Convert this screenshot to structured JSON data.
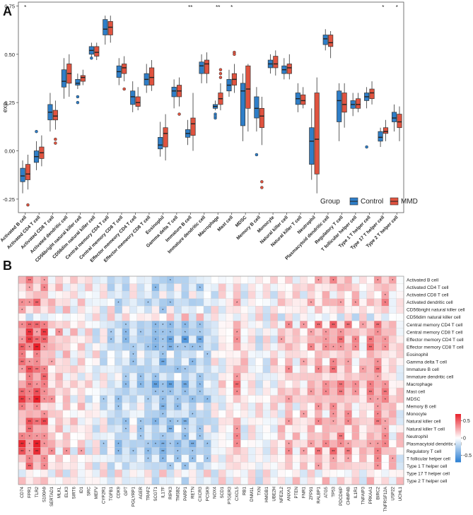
{
  "chart_data": [
    {
      "panel": "A",
      "type": "box",
      "ylabel": "exp",
      "xlabel": "",
      "ylim": [
        -0.32,
        0.77
      ],
      "yticks": [
        "-0.25",
        "0.00",
        "0.25",
        "0.50",
        "0.75"
      ],
      "ytick_values": [
        -0.25,
        0.0,
        0.25,
        0.5,
        0.75
      ],
      "legend": {
        "title": "Group",
        "position": "bottom-right",
        "entries": [
          "Control",
          "MMD"
        ]
      },
      "colors": {
        "Control": "#2e7ec8",
        "MMD": "#e0533f"
      },
      "categories": [
        "Activated B cell",
        "Activated CD4 T cell",
        "Activated CD8 T cell",
        "Activated dendritic cell",
        "CD56bright natural killer cell",
        "CD56dim natural killer cell",
        "Central memory CD4 T cell",
        "Central memory CD8 T cell",
        "Effector memeory CD4 T cell",
        "Effector memeory CD8 T cell",
        "Eosinophil",
        "Gamma delta T cell",
        "Immature  B cell",
        "Immature dendritic cell",
        "Macrophage",
        "Mast cell",
        "MDSC",
        "Memory B cell",
        "Monocyte",
        "Natural killer cell",
        "Natural killer T cell",
        "Neutrophil",
        "Plasmacytoid dendritic cell",
        "Regulatory T cell",
        "T follicular helper cell",
        "Type 1 T helper cell",
        "Type 17 T helper cell",
        "Type 2 T helper cell"
      ],
      "significance": [
        "*",
        "",
        "",
        "",
        "",
        "",
        "",
        "",
        "",
        "",
        "",
        "",
        "**",
        "",
        "**",
        "*",
        "",
        "",
        "",
        "",
        "",
        "",
        "",
        "",
        "",
        "",
        "*",
        "*"
      ],
      "series": [
        {
          "name": "Control",
          "boxes": [
            [
              -0.22,
              -0.16,
              -0.13,
              -0.09,
              -0.05
            ],
            [
              -0.1,
              -0.06,
              -0.03,
              0.0,
              0.05
            ],
            [
              0.1,
              0.16,
              0.2,
              0.24,
              0.3
            ],
            [
              0.27,
              0.33,
              0.36,
              0.42,
              0.48
            ],
            [
              0.32,
              0.34,
              0.35,
              0.37,
              0.4
            ],
            [
              0.48,
              0.5,
              0.52,
              0.54,
              0.56
            ],
            [
              0.55,
              0.6,
              0.63,
              0.68,
              0.7
            ],
            [
              0.34,
              0.38,
              0.41,
              0.44,
              0.48
            ],
            [
              0.2,
              0.24,
              0.28,
              0.31,
              0.36
            ],
            [
              0.3,
              0.34,
              0.37,
              0.4,
              0.45
            ],
            [
              -0.03,
              0.01,
              0.03,
              0.07,
              0.15
            ],
            [
              0.22,
              0.28,
              0.31,
              0.33,
              0.37
            ],
            [
              0.03,
              0.07,
              0.09,
              0.11,
              0.16
            ],
            [
              0.35,
              0.4,
              0.44,
              0.46,
              0.5
            ],
            [
              0.21,
              0.22,
              0.23,
              0.24,
              0.26
            ],
            [
              0.28,
              0.31,
              0.34,
              0.37,
              0.42
            ],
            [
              0.05,
              0.13,
              0.31,
              0.35,
              0.4
            ],
            [
              0.1,
              0.17,
              0.22,
              0.28,
              0.33
            ],
            [
              0.4,
              0.43,
              0.45,
              0.47,
              0.5
            ],
            [
              0.37,
              0.4,
              0.42,
              0.44,
              0.48
            ],
            [
              0.2,
              0.24,
              0.27,
              0.3,
              0.35
            ],
            [
              -0.15,
              -0.07,
              0.05,
              0.12,
              0.22
            ],
            [
              0.52,
              0.55,
              0.58,
              0.6,
              0.63
            ],
            [
              0.05,
              0.15,
              0.26,
              0.31,
              0.35
            ],
            [
              0.18,
              0.22,
              0.24,
              0.26,
              0.3
            ],
            [
              0.22,
              0.26,
              0.28,
              0.3,
              0.33
            ],
            [
              0.02,
              0.05,
              0.07,
              0.1,
              0.12
            ],
            [
              0.1,
              0.15,
              0.17,
              0.2,
              0.24
            ]
          ]
        },
        {
          "name": "MMD",
          "boxes": [
            [
              -0.2,
              -0.15,
              -0.12,
              -0.07,
              -0.02
            ],
            [
              -0.08,
              -0.04,
              -0.01,
              0.02,
              0.08
            ],
            [
              0.11,
              0.16,
              0.18,
              0.21,
              0.26
            ],
            [
              0.28,
              0.35,
              0.4,
              0.45,
              0.5
            ],
            [
              0.34,
              0.36,
              0.38,
              0.39,
              0.42
            ],
            [
              0.47,
              0.49,
              0.51,
              0.54,
              0.56
            ],
            [
              0.56,
              0.6,
              0.64,
              0.67,
              0.7
            ],
            [
              0.36,
              0.4,
              0.43,
              0.45,
              0.49
            ],
            [
              0.21,
              0.23,
              0.25,
              0.28,
              0.33
            ],
            [
              0.31,
              0.34,
              0.38,
              0.43,
              0.47
            ],
            [
              -0.05,
              0.02,
              0.09,
              0.12,
              0.19
            ],
            [
              0.23,
              0.28,
              0.31,
              0.34,
              0.38
            ],
            [
              0.0,
              0.08,
              0.14,
              0.17,
              0.3
            ],
            [
              0.35,
              0.4,
              0.45,
              0.47,
              0.51
            ],
            [
              0.21,
              0.24,
              0.27,
              0.3,
              0.35
            ],
            [
              0.3,
              0.34,
              0.37,
              0.4,
              0.45
            ],
            [
              0.1,
              0.22,
              0.32,
              0.44,
              0.45
            ],
            [
              0.03,
              0.12,
              0.18,
              0.22,
              0.28
            ],
            [
              0.39,
              0.43,
              0.45,
              0.49,
              0.52
            ],
            [
              0.37,
              0.4,
              0.43,
              0.45,
              0.5
            ],
            [
              0.22,
              0.24,
              0.26,
              0.29,
              0.33
            ],
            [
              -0.22,
              -0.12,
              0.06,
              0.3,
              0.38
            ],
            [
              0.48,
              0.54,
              0.56,
              0.6,
              0.62
            ],
            [
              0.12,
              0.2,
              0.24,
              0.3,
              0.35
            ],
            [
              0.2,
              0.22,
              0.24,
              0.27,
              0.3
            ],
            [
              0.24,
              0.27,
              0.3,
              0.32,
              0.36
            ],
            [
              0.05,
              0.09,
              0.1,
              0.12,
              0.16
            ],
            [
              0.05,
              0.12,
              0.15,
              0.19,
              0.23
            ]
          ]
        }
      ],
      "outliers": {
        "Control": [
          [
            1,
            0.1
          ],
          [
            4,
            0.25
          ],
          [
            4,
            0.28
          ],
          [
            5,
            0.48
          ],
          [
            14,
            0.17
          ],
          [
            14,
            0.19
          ],
          [
            14,
            0.18
          ],
          [
            17,
            -0.02
          ],
          [
            25,
            0.02
          ]
        ],
        "MMD": [
          [
            0,
            -0.28
          ],
          [
            2,
            0.04
          ],
          [
            2,
            0.06
          ],
          [
            7,
            0.32
          ],
          [
            11,
            0.19
          ],
          [
            14,
            0.38
          ],
          [
            14,
            0.4
          ],
          [
            14,
            0.42
          ],
          [
            15,
            0.51
          ],
          [
            15,
            0.5
          ],
          [
            17,
            -0.16
          ],
          [
            17,
            -0.19
          ]
        ]
      }
    },
    {
      "panel": "B",
      "type": "heatmap",
      "title": "",
      "colorbar": {
        "min": -0.7,
        "max": 0.7,
        "ticks": [
          "0.5",
          "0",
          "-0.5"
        ],
        "tick_values": [
          0.5,
          0,
          -0.5
        ],
        "low_color": "#2b7fd3",
        "mid_color": "#ffffff",
        "high_color": "#e8202a"
      },
      "rows": [
        "Activated B cell",
        "Activated CD4 T cell",
        "Activated CD8 T cell",
        "Activated dendritic cell",
        "CD56bright natural killer cell",
        "CD56dim natural killer cell",
        "Central memory CD4 T cell",
        "Central memory CD8 T cell",
        "Effector memory CD4 T cell",
        "Effector memory CD8 T cell",
        "Eosinophil",
        "Gamma delta T cell",
        "Immature  B cell",
        "Immature dendritic cell",
        "Macrophage",
        "Mast cell",
        "MDSC",
        "Memory B cell",
        "Monocyte",
        "Natural killer cell",
        "Natural killer T cell",
        "Neutrophil",
        "Plasmacytoid dendritic cell",
        "Regulatory T cell",
        "T follicular helper cell",
        "Type 1 T helper cell",
        "Type 17 T helper cell",
        "Type 2 T helper cell"
      ],
      "columns": [
        "CD74",
        "FPR1",
        "TLR2",
        "S100A9",
        "SERTAD1",
        "MLKL",
        "ELK3",
        "SIRT6",
        "ID1",
        "SRC",
        "MEFV",
        "CYP2R1",
        "TGFB1",
        "CDK9",
        "GPT",
        "PGLYRP1",
        "AGER",
        "TRAF2",
        "SCGT1",
        "IL17F",
        "RIPK3",
        "TMSB2",
        "PARP1",
        "RETN",
        "CXCR3",
        "PCSK9",
        "NOX4",
        "SCD1",
        "PTGER3",
        "CXCL5",
        "RB1",
        "DNM1L",
        "TXN",
        "HMGB1",
        "UBE2H",
        "NFE2L2",
        "ANXA1",
        "PTEN",
        "FNR1",
        "ZFP91",
        "RALBP1",
        "ATG5",
        "TP53",
        "PDCD6IP",
        "CHMP4B",
        "IL1R1",
        "TNFAIP3",
        "PRKAA1",
        "BIRC2",
        "TNFRSF12A",
        "USP22",
        "UCHL1"
      ],
      "column_labels_shown": [
        "CD74",
        "FPR1",
        "TLR2",
        "S100A9",
        "SERTAD1",
        "MLKL",
        "ELK3",
        "SIRT6",
        "ID1",
        "SRC",
        "MEFV",
        "CYP2R1",
        "TGFB1",
        "CDK9",
        "GPT",
        "PGLYRP1",
        "AGER",
        "TRAF2",
        "SCGT1",
        "IL17F",
        "RIPK3",
        "TMSB2",
        "PARP1",
        "RETN",
        "CXCR3",
        "PCSK9",
        "NOX4",
        "SCD1",
        "PTGER3",
        "CXCL5",
        "RB1",
        "DNM1L",
        "TXN",
        "HMGB1",
        "UBE2H",
        "NFE2L2",
        "ANXA1",
        "PTEN",
        "FNR1",
        "ZFP91",
        "RALBP1",
        "ATG5",
        "TP53",
        "PDCD6IP",
        "CHMP4B",
        "IL1R1",
        "TNFAIP3",
        "PRKAA1",
        "BIRC2",
        "TNFRSF12A",
        "USP22",
        "UCHL1"
      ],
      "column_pattern": [
        0.45,
        0.5,
        0.55,
        0.45,
        0.2,
        0.15,
        0.15,
        0.05,
        0.1,
        0.0,
        -0.05,
        -0.1,
        -0.15,
        -0.25,
        -0.3,
        -0.2,
        -0.25,
        -0.3,
        -0.35,
        -0.4,
        -0.35,
        -0.3,
        -0.35,
        -0.3,
        -0.3,
        -0.25,
        -0.1,
        0.0,
        0.05,
        0.3,
        0.05,
        0.0,
        -0.05,
        -0.05,
        0.05,
        0.1,
        0.25,
        0.1,
        0.15,
        0.2,
        0.3,
        0.25,
        0.35,
        0.3,
        0.3,
        0.2,
        0.15,
        0.3,
        0.35,
        0.3,
        0.15,
        0.05
      ],
      "row_pattern": [
        0.6,
        0.5,
        0.3,
        0.7,
        0.3,
        -0.2,
        0.9,
        0.9,
        1.0,
        1.0,
        0.5,
        0.7,
        0.8,
        0.6,
        0.9,
        0.9,
        0.9,
        0.6,
        0.6,
        0.9,
        0.6,
        0.7,
        1.0,
        0.9,
        0.6,
        0.6,
        0.0,
        0.3
      ],
      "significance_levels": [
        "*",
        "**"
      ]
    }
  ],
  "panel_labels": {
    "a": "A",
    "b": "B"
  }
}
